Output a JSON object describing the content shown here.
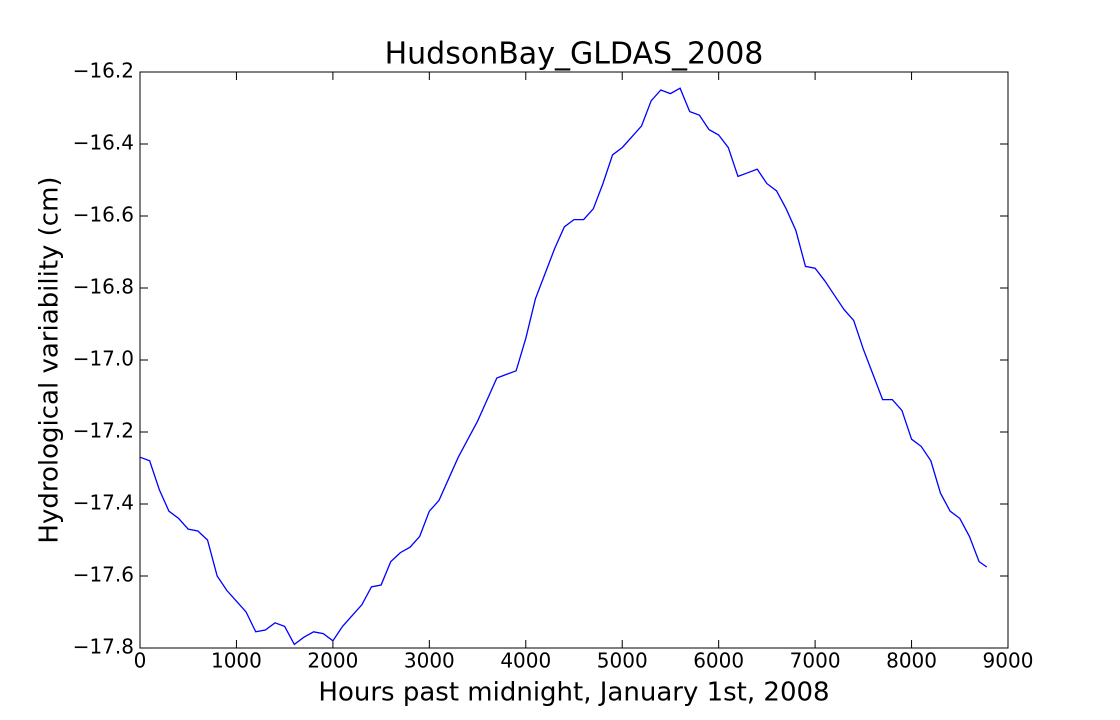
{
  "chart_data": {
    "type": "line",
    "title": "HudsonBay_GLDAS_2008",
    "x_label": "Hours past midnight, January 1st, 2008",
    "y_label": "Hydrological variability (cm)",
    "x": [
      0,
      100,
      200,
      300,
      400,
      500,
      600,
      700,
      800,
      900,
      1000,
      1100,
      1200,
      1300,
      1400,
      1500,
      1600,
      1700,
      1800,
      1900,
      2000,
      2100,
      2200,
      2300,
      2400,
      2500,
      2600,
      2700,
      2800,
      2900,
      3000,
      3100,
      3200,
      3300,
      3400,
      3500,
      3600,
      3700,
      3800,
      3900,
      4000,
      4100,
      4200,
      4300,
      4400,
      4500,
      4600,
      4700,
      4800,
      4900,
      5000,
      5100,
      5200,
      5300,
      5400,
      5500,
      5600,
      5700,
      5800,
      5900,
      6000,
      6100,
      6200,
      6300,
      6400,
      6500,
      6600,
      6700,
      6800,
      6900,
      7000,
      7100,
      7200,
      7300,
      7400,
      7500,
      7600,
      7700,
      7800,
      7900,
      8000,
      8100,
      8200,
      8300,
      8400,
      8500,
      8600,
      8700,
      8780
    ],
    "series": [
      {
        "color": "#0000ff",
        "values": [
          -17.27,
          -17.28,
          -17.36,
          -17.42,
          -17.44,
          -17.47,
          -17.475,
          -17.5,
          -17.6,
          -17.64,
          -17.67,
          -17.7,
          -17.755,
          -17.75,
          -17.73,
          -17.74,
          -17.79,
          -17.77,
          -17.755,
          -17.76,
          -17.78,
          -17.74,
          -17.71,
          -17.68,
          -17.63,
          -17.625,
          -17.56,
          -17.535,
          -17.52,
          -17.49,
          -17.42,
          -17.39,
          -17.33,
          -17.27,
          -17.22,
          -17.17,
          -17.11,
          -17.05,
          -17.04,
          -17.03,
          -16.94,
          -16.83,
          -16.76,
          -16.69,
          -16.63,
          -16.61,
          -16.61,
          -16.58,
          -16.51,
          -16.43,
          -16.41,
          -16.38,
          -16.35,
          -16.28,
          -16.25,
          -16.26,
          -16.245,
          -16.31,
          -16.32,
          -16.36,
          -16.375,
          -16.41,
          -16.49,
          -16.48,
          -16.47,
          -16.51,
          -16.53,
          -16.58,
          -16.64,
          -16.74,
          -16.745,
          -16.78,
          -16.82,
          -16.86,
          -16.89,
          -16.97,
          -17.04,
          -17.11,
          -17.11,
          -17.14,
          -17.22,
          -17.24,
          -17.28,
          -17.37,
          -17.42,
          -17.44,
          -17.49,
          -17.56,
          -17.575
        ]
      }
    ],
    "xlim": [
      0,
      9000
    ],
    "xticks": [
      0,
      1000,
      2000,
      3000,
      4000,
      5000,
      6000,
      7000,
      8000,
      9000
    ],
    "ylim": [
      -17.8,
      -16.2
    ],
    "yticks": [
      {
        "value": -17.8,
        "label": "−17.8"
      },
      {
        "value": -17.6,
        "label": "−17.6"
      },
      {
        "value": -17.4,
        "label": "−17.4"
      },
      {
        "value": -17.2,
        "label": "−17.2"
      },
      {
        "value": -17.0,
        "label": "−17.0"
      },
      {
        "value": -16.8,
        "label": "−16.8"
      },
      {
        "value": -16.6,
        "label": "−16.6"
      },
      {
        "value": -16.4,
        "label": "−16.4"
      },
      {
        "value": -16.2,
        "label": "−16.2"
      }
    ],
    "grid": false
  }
}
